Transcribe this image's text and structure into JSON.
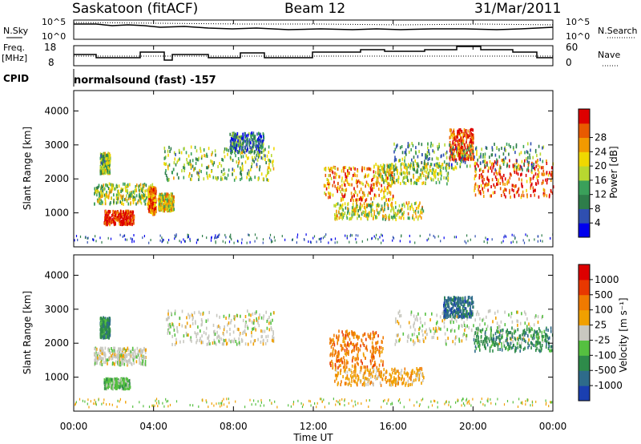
{
  "header": {
    "station": "Saskatoon (fitACF)",
    "beam": "Beam 12",
    "date": "31/Mar/2011"
  },
  "noise_panel": {
    "left_label": "N.Sky",
    "left_ticks": [
      "10^5",
      "10^0"
    ],
    "right_ticks": [
      "10^5",
      "10^0"
    ],
    "right_label": "N.Search",
    "right_legend_style": "dotted"
  },
  "freq_panel": {
    "left_label_line1": "Freq.",
    "left_label_line2": "[MHz]",
    "left_ticks": [
      "18",
      "8"
    ],
    "right_ticks": [
      "60",
      "0"
    ],
    "right_label": "Nave",
    "right_legend_style": "dotted"
  },
  "cpid": {
    "label": "CPID",
    "value": "normalsound (fast) -157"
  },
  "chart_data": [
    {
      "type": "heatmap",
      "quantity": "Power",
      "xlabel": "Time UT",
      "ylabel": "Slant Range [km]",
      "xlim": [
        0,
        24
      ],
      "ylim": [
        0,
        4600
      ],
      "x_tick_labels": [
        "00:00",
        "04:00",
        "08:00",
        "12:00",
        "16:00",
        "20:00",
        "00:00"
      ],
      "y_ticks": [
        1000,
        2000,
        3000,
        4000
      ],
      "colorbar": {
        "label": "Power [dB]",
        "ticks": [
          "4",
          "8",
          "12",
          "16",
          "20",
          "24",
          "28"
        ],
        "colors": [
          "#0000ee",
          "#2f4fb0",
          "#2e7d4a",
          "#3aa05a",
          "#b8d830",
          "#f0d800",
          "#f29a00",
          "#e85a00",
          "#dd0000"
        ]
      },
      "regions": [
        {
          "t": [
            1.3,
            1.8
          ],
          "r": [
            2200,
            2800
          ],
          "level": 0.45
        },
        {
          "t": [
            1.0,
            4.0
          ],
          "r": [
            1300,
            1900
          ],
          "level": 0.5
        },
        {
          "t": [
            1.5,
            3.0
          ],
          "r": [
            700,
            1100
          ],
          "level": 0.95
        },
        {
          "t": [
            3.7,
            4.1
          ],
          "r": [
            1000,
            1800
          ],
          "level": 0.8
        },
        {
          "t": [
            4.2,
            5.0
          ],
          "r": [
            1100,
            1600
          ],
          "level": 0.6
        },
        {
          "t": [
            4.5,
            10.0
          ],
          "r": [
            2000,
            3000
          ],
          "level": 0.45
        },
        {
          "t": [
            7.8,
            9.5
          ],
          "r": [
            2800,
            3400
          ],
          "level": 0.25
        },
        {
          "t": [
            12.5,
            16.0
          ],
          "r": [
            1400,
            2400
          ],
          "level": 0.75
        },
        {
          "t": [
            13.0,
            17.5
          ],
          "r": [
            850,
            1350
          ],
          "level": 0.55
        },
        {
          "t": [
            15.0,
            18.8
          ],
          "r": [
            1900,
            2500
          ],
          "level": 0.5
        },
        {
          "t": [
            18.8,
            20.0
          ],
          "r": [
            2600,
            3500
          ],
          "level": 0.9
        },
        {
          "t": [
            20.0,
            24.0
          ],
          "r": [
            1500,
            2600
          ],
          "level": 0.85
        },
        {
          "t": [
            16.0,
            23.5
          ],
          "r": [
            2300,
            3100
          ],
          "level": 0.35
        }
      ]
    },
    {
      "type": "heatmap",
      "quantity": "Velocity",
      "xlabel": "Time UT",
      "ylabel": "Slant Range [km]",
      "xlim": [
        0,
        24
      ],
      "ylim": [
        0,
        4600
      ],
      "x_tick_labels": [
        "00:00",
        "04:00",
        "08:00",
        "12:00",
        "16:00",
        "20:00",
        "00:00"
      ],
      "y_ticks": [
        1000,
        2000,
        3000,
        4000
      ],
      "colorbar": {
        "label": "Velocity [m s⁻¹]",
        "ticks": [
          "1000",
          "500",
          "100",
          "25",
          "-25",
          "-100",
          "-500",
          "-1000"
        ],
        "colors": [
          "#1a3fb0",
          "#2e6b8a",
          "#2e8b4a",
          "#55c040",
          "#c8c8c0",
          "#f0a000",
          "#f07a00",
          "#e83800",
          "#dd0000"
        ]
      },
      "regions": [
        {
          "t": [
            1.3,
            1.8
          ],
          "r": [
            2200,
            2800
          ],
          "level": 2
        },
        {
          "t": [
            1.0,
            3.6
          ],
          "r": [
            1400,
            1900
          ],
          "level": 4
        },
        {
          "t": [
            1.5,
            2.8
          ],
          "r": [
            700,
            1000
          ],
          "level": 3
        },
        {
          "t": [
            4.6,
            10.0
          ],
          "r": [
            2000,
            3000
          ],
          "level": 4
        },
        {
          "t": [
            12.8,
            15.5
          ],
          "r": [
            1300,
            2400
          ],
          "level": 6
        },
        {
          "t": [
            13.0,
            17.5
          ],
          "r": [
            800,
            1300
          ],
          "level": 5
        },
        {
          "t": [
            16.0,
            23.5
          ],
          "r": [
            2000,
            3000
          ],
          "level": 4
        },
        {
          "t": [
            18.5,
            20.0
          ],
          "r": [
            2800,
            3400
          ],
          "level": 1
        },
        {
          "t": [
            20.0,
            24.0
          ],
          "r": [
            1800,
            2500
          ],
          "level": 2
        }
      ]
    }
  ]
}
